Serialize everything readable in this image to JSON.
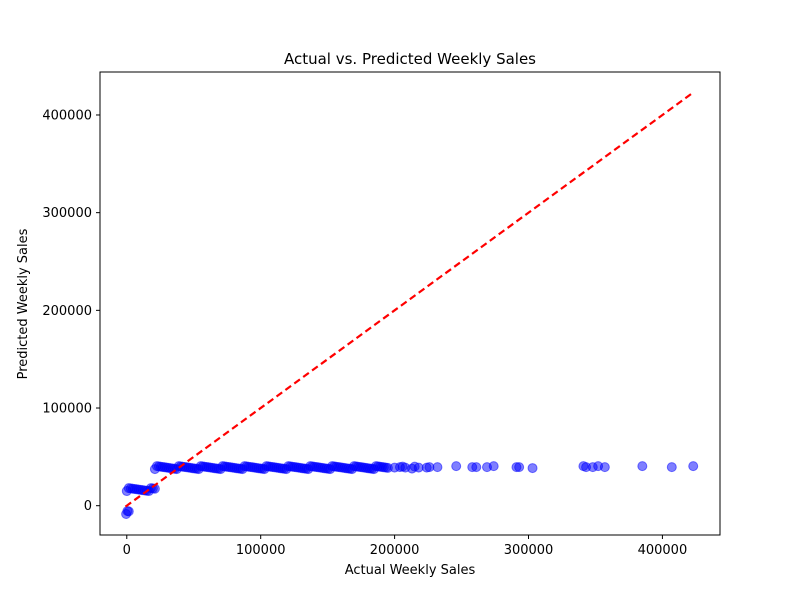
{
  "chart_data": {
    "type": "scatter",
    "title": "Actual vs. Predicted Weekly Sales",
    "xlabel": "Actual Weekly Sales",
    "ylabel": "Predicted Weekly Sales",
    "xlim": [
      -20000,
      443000
    ],
    "ylim": [
      -30000,
      444000
    ],
    "x_ticks": [
      0,
      100000,
      200000,
      300000,
      400000
    ],
    "y_ticks": [
      0,
      100000,
      200000,
      300000,
      400000
    ],
    "grid": false,
    "legend": "none",
    "colors": {
      "points": "#0000ff",
      "reference_line": "#ff0000"
    },
    "series": [
      {
        "role": "points",
        "marker": "circle",
        "alpha": 0.5,
        "clusters": [
          {
            "x_range": [
              -500,
              1500
            ],
            "y": -7000
          },
          {
            "x_range": [
              0,
              21000
            ],
            "y": 16500
          },
          {
            "x_range": [
              21000,
              195000
            ],
            "y": 39000
          }
        ],
        "points": [
          {
            "x": 200000,
            "y": 39000
          },
          {
            "x": 204000,
            "y": 39500
          },
          {
            "x": 206000,
            "y": 40000
          },
          {
            "x": 208000,
            "y": 39000
          },
          {
            "x": 213000,
            "y": 38000
          },
          {
            "x": 215000,
            "y": 40000
          },
          {
            "x": 218000,
            "y": 39000
          },
          {
            "x": 224000,
            "y": 39000
          },
          {
            "x": 226000,
            "y": 39500
          },
          {
            "x": 232000,
            "y": 39500
          },
          {
            "x": 246000,
            "y": 40500
          },
          {
            "x": 258000,
            "y": 39500
          },
          {
            "x": 261000,
            "y": 39500
          },
          {
            "x": 269000,
            "y": 39500
          },
          {
            "x": 274000,
            "y": 40500
          },
          {
            "x": 291000,
            "y": 39500
          },
          {
            "x": 293000,
            "y": 39500
          },
          {
            "x": 303000,
            "y": 38500
          },
          {
            "x": 341000,
            "y": 40500
          },
          {
            "x": 343000,
            "y": 39500
          },
          {
            "x": 348000,
            "y": 39500
          },
          {
            "x": 352000,
            "y": 40500
          },
          {
            "x": 357000,
            "y": 39500
          },
          {
            "x": 385000,
            "y": 40500
          },
          {
            "x": 407000,
            "y": 39500
          },
          {
            "x": 423000,
            "y": 40500
          }
        ]
      },
      {
        "role": "reference_line",
        "style": "dashed",
        "x": [
          -1000,
          422000
        ],
        "y": [
          -1000,
          422000
        ]
      }
    ]
  }
}
